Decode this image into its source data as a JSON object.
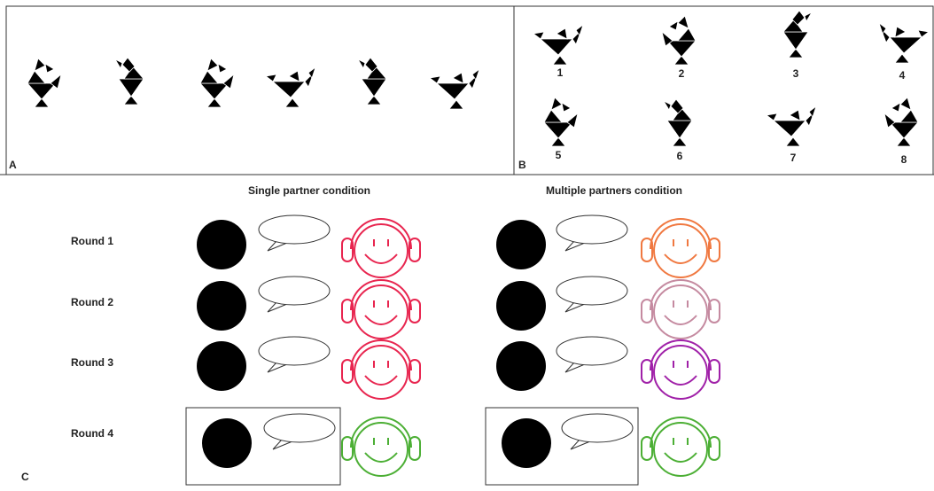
{
  "panels": {
    "a": {
      "label": "A"
    },
    "b": {
      "label": "B",
      "items": [
        "1",
        "2",
        "3",
        "4",
        "5",
        "6",
        "7",
        "8"
      ]
    },
    "c": {
      "label": "C",
      "conditions": [
        "Single partner condition",
        "Multiple partners condition"
      ],
      "rounds": [
        "Round 1",
        "Round 2",
        "Round 3",
        "Round 4"
      ]
    }
  }
}
